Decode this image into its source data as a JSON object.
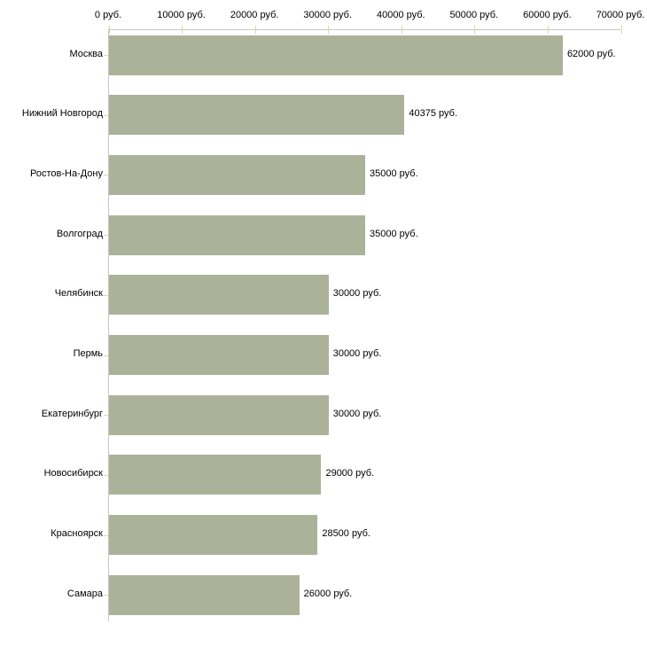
{
  "chart_data": {
    "type": "bar",
    "orientation": "horizontal",
    "title": "",
    "xlabel": "",
    "ylabel": "",
    "categories": [
      "Москва",
      "Нижний Новгород",
      "Ростов-На-Дону",
      "Волгоград",
      "Челябинск",
      "Пермь",
      "Екатеринбург",
      "Новосибирск",
      "Красноярск",
      "Самара"
    ],
    "values": [
      62000,
      40375,
      35000,
      35000,
      30000,
      30000,
      30000,
      29000,
      28500,
      26000
    ],
    "value_labels": [
      "62000 руб.",
      "40375 руб.",
      "35000 руб.",
      "35000 руб.",
      "30000 руб.",
      "30000 руб.",
      "30000 руб.",
      "29000 руб.",
      "28500 руб.",
      "26000 руб."
    ],
    "x_tick_labels": [
      "0 руб.",
      "10000 руб.",
      "20000 руб.",
      "30000 руб.",
      "40000 руб.",
      "50000 руб.",
      "60000 руб.",
      "70000 руб."
    ],
    "xlim": [
      0,
      70000
    ],
    "x_tick_step": 10000,
    "grid": false,
    "legend": "none",
    "axis_position": "top",
    "bar_color": "#acb299",
    "axis_line_color": "#c6c6c6",
    "tick_mark_color": "#d4d9ae",
    "text_color": "#000000",
    "background_color": "#ffffff"
  }
}
